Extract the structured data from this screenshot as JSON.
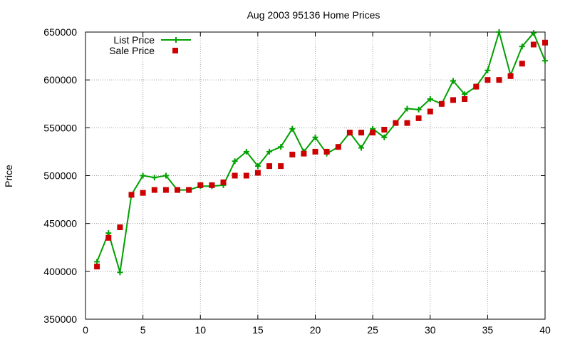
{
  "chart_data": {
    "type": "line",
    "title": "Aug 2003 95136 Home Prices",
    "xlabel": "",
    "ylabel": "Price",
    "xlim": [
      0,
      40
    ],
    "ylim": [
      350000,
      650000
    ],
    "xticks": [
      0,
      5,
      10,
      15,
      20,
      25,
      30,
      35,
      40
    ],
    "yticks": [
      350000,
      400000,
      450000,
      500000,
      550000,
      600000,
      650000
    ],
    "grid": true,
    "legend_position": "top-left",
    "x": [
      1,
      2,
      3,
      4,
      5,
      6,
      7,
      8,
      9,
      10,
      11,
      12,
      13,
      14,
      15,
      16,
      17,
      18,
      19,
      20,
      21,
      22,
      23,
      24,
      25,
      26,
      27,
      28,
      29,
      30,
      31,
      32,
      33,
      34,
      35,
      36,
      37,
      38,
      39,
      40
    ],
    "series": [
      {
        "name": "List Price",
        "style": "linespoints",
        "marker": "plus",
        "color": "#00a000",
        "values": [
          410000,
          440000,
          399000,
          480000,
          500000,
          498000,
          500000,
          485000,
          485000,
          489000,
          489000,
          490000,
          515000,
          525000,
          510000,
          525000,
          530000,
          549000,
          525000,
          540000,
          523000,
          530000,
          545000,
          529000,
          549000,
          540000,
          555000,
          570000,
          569000,
          580000,
          575000,
          599000,
          585000,
          593000,
          610000,
          650000,
          605000,
          635000,
          649000,
          620000
        ]
      },
      {
        "name": "Sale Price",
        "style": "points",
        "marker": "square",
        "color": "#cc0000",
        "values": [
          405000,
          435000,
          446000,
          480000,
          482000,
          485000,
          485000,
          485000,
          485000,
          490000,
          490000,
          493000,
          500000,
          500000,
          503000,
          510000,
          510000,
          522000,
          523000,
          525000,
          525000,
          530000,
          545000,
          545000,
          545000,
          548000,
          555000,
          555000,
          560000,
          567000,
          575000,
          579000,
          580000,
          593000,
          600000,
          600000,
          604000,
          617000,
          637000,
          639000
        ]
      }
    ]
  }
}
